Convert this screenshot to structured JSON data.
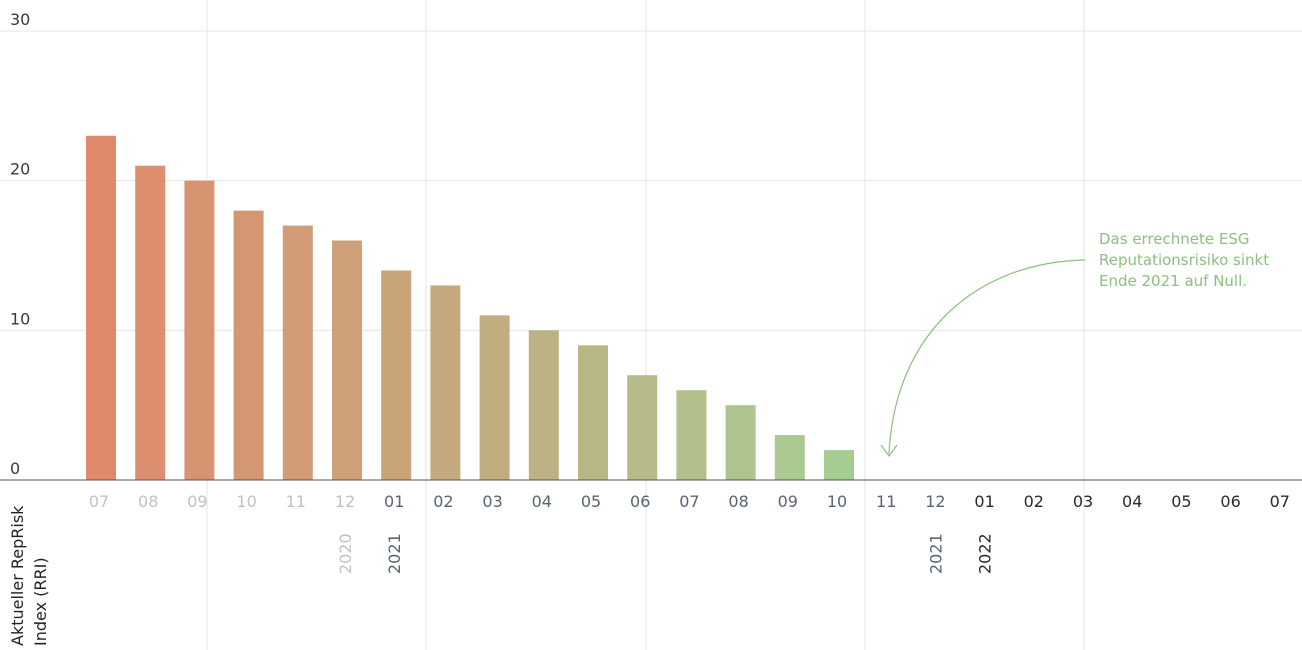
{
  "chart_data": {
    "type": "bar",
    "title": "",
    "ylabel_lines": [
      "Aktueller RepRisk",
      "Index (RRI)"
    ],
    "ylim": [
      0,
      30
    ],
    "yticks": [
      "0",
      "10",
      "20",
      "30"
    ],
    "grid": true,
    "categories": [
      "07",
      "08",
      "09",
      "10",
      "11",
      "12",
      "01",
      "02",
      "03",
      "04",
      "05",
      "06",
      "07",
      "08",
      "09",
      "10",
      "11",
      "12",
      "01",
      "02",
      "03",
      "04",
      "05",
      "06",
      "07"
    ],
    "values": [
      23,
      21,
      20,
      18,
      17,
      16,
      14,
      13,
      11,
      10,
      9,
      7,
      6,
      5,
      3,
      2,
      null,
      null,
      null,
      null,
      null,
      null,
      null,
      null,
      null
    ],
    "year_labels": [
      {
        "text": "2020",
        "index": 5
      },
      {
        "text": "2021",
        "index": 6
      },
      {
        "text": "2021",
        "index": 17
      },
      {
        "text": "2022",
        "index": 18
      }
    ],
    "annotation": {
      "lines": [
        "Das errechnete ESG",
        "Reputationsrisiko sinkt",
        "Ende 2021 auf Null."
      ]
    },
    "colors": {
      "bar_start": "#e08a6c",
      "bar_end": "#a6cc92",
      "past_tick": "#c2c2c2",
      "current_tick": "#5a6470",
      "future_tick": "#2a2a2a",
      "annotation": "#8cc07e",
      "grid": "#e4e4e4",
      "axis": "#555555"
    }
  }
}
